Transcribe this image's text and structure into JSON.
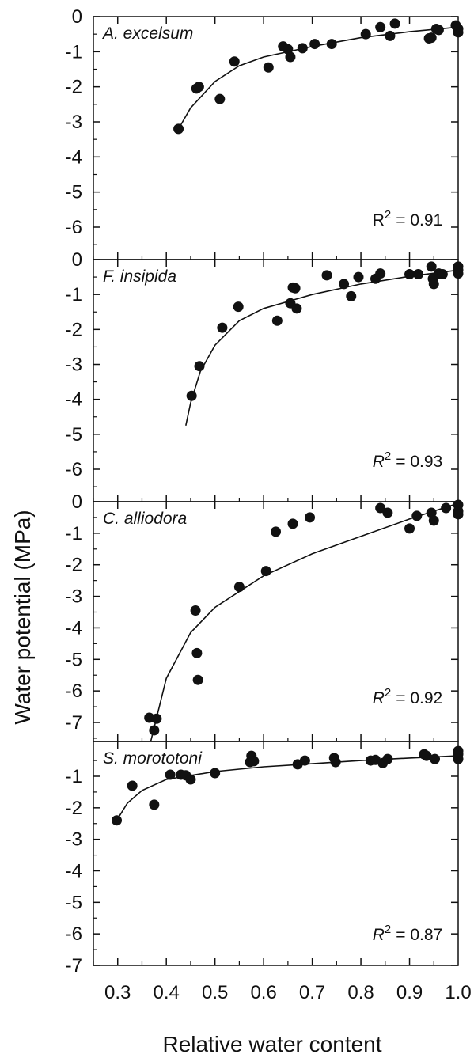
{
  "chart_data": {
    "type": "scatter",
    "xlabel": "Relative water content",
    "ylabel": "Water potential (MPa)",
    "x_ticks": [
      0.3,
      0.4,
      0.5,
      0.6,
      0.7,
      0.8,
      0.9,
      1.0
    ],
    "x_tick_labels": [
      "0.3",
      "0.4",
      "0.5",
      "0.6",
      "0.7",
      "0.8",
      "0.9",
      "1.0"
    ],
    "xlim": [
      0.25,
      1.0
    ],
    "grid": false,
    "panels": [
      {
        "species": "A. excelsum",
        "r2_label": "R",
        "r2_sup": "2",
        "r2_value": "= 0.91",
        "r2_italic": false,
        "ylim": [
          -7,
          0
        ],
        "y_ticks": [
          0,
          -1,
          -2,
          -3,
          -4,
          -5,
          -6
        ],
        "y_tick_labels": [
          "0",
          "-1",
          "-2",
          "-3",
          "-4",
          "-5",
          "-6"
        ],
        "points": [
          [
            0.425,
            -3.2
          ],
          [
            0.462,
            -2.05
          ],
          [
            0.467,
            -2.0
          ],
          [
            0.51,
            -2.35
          ],
          [
            0.54,
            -1.28
          ],
          [
            0.61,
            -1.45
          ],
          [
            0.64,
            -0.85
          ],
          [
            0.65,
            -0.93
          ],
          [
            0.655,
            -1.15
          ],
          [
            0.68,
            -0.9
          ],
          [
            0.705,
            -0.78
          ],
          [
            0.74,
            -0.78
          ],
          [
            0.81,
            -0.5
          ],
          [
            0.84,
            -0.3
          ],
          [
            0.86,
            -0.55
          ],
          [
            0.87,
            -0.2
          ],
          [
            0.94,
            -0.62
          ],
          [
            0.945,
            -0.6
          ],
          [
            0.955,
            -0.35
          ],
          [
            0.96,
            -0.38
          ],
          [
            0.995,
            -0.25
          ],
          [
            1.0,
            -0.35
          ],
          [
            1.0,
            -0.45
          ]
        ],
        "curve": [
          [
            0.425,
            -3.2
          ],
          [
            0.45,
            -2.6
          ],
          [
            0.5,
            -1.85
          ],
          [
            0.55,
            -1.4
          ],
          [
            0.6,
            -1.15
          ],
          [
            0.7,
            -0.85
          ],
          [
            0.8,
            -0.6
          ],
          [
            0.9,
            -0.43
          ],
          [
            1.0,
            -0.3
          ]
        ]
      },
      {
        "species": "F. insipida",
        "r2_label": "R",
        "r2_sup": "2",
        "r2_value": "= 0.93",
        "r2_italic": true,
        "ylim": [
          -7,
          0
        ],
        "y_ticks": [
          0,
          -1,
          -2,
          -3,
          -4,
          -5,
          -6
        ],
        "y_tick_labels": [
          "0",
          "-1",
          "-2",
          "-3",
          "-4",
          "-5",
          "-6"
        ],
        "points": [
          [
            0.452,
            -3.9
          ],
          [
            0.468,
            -3.05
          ],
          [
            0.515,
            -1.95
          ],
          [
            0.548,
            -1.35
          ],
          [
            0.628,
            -1.75
          ],
          [
            0.655,
            -1.25
          ],
          [
            0.66,
            -0.8
          ],
          [
            0.665,
            -0.82
          ],
          [
            0.668,
            -1.4
          ],
          [
            0.73,
            -0.45
          ],
          [
            0.765,
            -0.7
          ],
          [
            0.78,
            -1.05
          ],
          [
            0.795,
            -0.5
          ],
          [
            0.83,
            -0.55
          ],
          [
            0.84,
            -0.4
          ],
          [
            0.9,
            -0.42
          ],
          [
            0.918,
            -0.42
          ],
          [
            0.945,
            -0.2
          ],
          [
            0.948,
            -0.55
          ],
          [
            0.95,
            -0.7
          ],
          [
            0.96,
            -0.4
          ],
          [
            0.968,
            -0.42
          ],
          [
            1.0,
            -0.2
          ],
          [
            1.0,
            -0.3
          ],
          [
            1.0,
            -0.4
          ]
        ],
        "curve": [
          [
            0.44,
            -4.75
          ],
          [
            0.45,
            -4.1
          ],
          [
            0.47,
            -3.2
          ],
          [
            0.5,
            -2.45
          ],
          [
            0.55,
            -1.75
          ],
          [
            0.6,
            -1.4
          ],
          [
            0.7,
            -1.0
          ],
          [
            0.8,
            -0.7
          ],
          [
            0.9,
            -0.48
          ],
          [
            1.0,
            -0.3
          ]
        ]
      },
      {
        "species": "C. alliodora",
        "r2_label": "R",
        "r2_sup": "2",
        "r2_value": "= 0.92",
        "r2_italic": true,
        "ylim": [
          -7.6,
          0
        ],
        "y_ticks": [
          0,
          -1,
          -2,
          -3,
          -4,
          -5,
          -6,
          -7
        ],
        "y_tick_labels": [
          "0",
          "-1",
          "-2",
          "-3",
          "-4",
          "-5",
          "-6",
          "-7"
        ],
        "points": [
          [
            0.365,
            -6.85
          ],
          [
            0.375,
            -7.25
          ],
          [
            0.38,
            -6.88
          ],
          [
            0.46,
            -3.45
          ],
          [
            0.463,
            -4.8
          ],
          [
            0.465,
            -5.65
          ],
          [
            0.55,
            -2.7
          ],
          [
            0.605,
            -2.2
          ],
          [
            0.625,
            -0.95
          ],
          [
            0.66,
            -0.7
          ],
          [
            0.695,
            -0.5
          ],
          [
            0.84,
            -0.2
          ],
          [
            0.855,
            -0.35
          ],
          [
            0.9,
            -0.85
          ],
          [
            0.915,
            -0.45
          ],
          [
            0.945,
            -0.35
          ],
          [
            0.95,
            -0.6
          ],
          [
            0.975,
            -0.2
          ],
          [
            1.0,
            -0.1
          ],
          [
            1.0,
            -0.3
          ],
          [
            1.0,
            -0.4
          ]
        ],
        "curve": [
          [
            0.368,
            -7.6
          ],
          [
            0.4,
            -5.6
          ],
          [
            0.45,
            -4.15
          ],
          [
            0.5,
            -3.35
          ],
          [
            0.6,
            -2.35
          ],
          [
            0.7,
            -1.65
          ],
          [
            0.8,
            -1.1
          ],
          [
            0.9,
            -0.55
          ],
          [
            1.0,
            -0.05
          ]
        ]
      },
      {
        "species": "S. morototoni",
        "r2_label": "R",
        "r2_sup": "2",
        "r2_value": "= 0.87",
        "r2_italic": true,
        "ylim": [
          -7,
          -0.2
        ],
        "y_ticks": [
          -1,
          -2,
          -3,
          -4,
          -5,
          -6,
          -7
        ],
        "y_tick_labels": [
          "-1",
          "-2",
          "-3",
          "-4",
          "-5",
          "-6",
          "-7"
        ],
        "points": [
          [
            0.298,
            -2.4
          ],
          [
            0.33,
            -1.3
          ],
          [
            0.375,
            -1.9
          ],
          [
            0.408,
            -0.95
          ],
          [
            0.43,
            -0.95
          ],
          [
            0.44,
            -0.97
          ],
          [
            0.45,
            -1.1
          ],
          [
            0.5,
            -0.9
          ],
          [
            0.572,
            -0.55
          ],
          [
            0.575,
            -0.35
          ],
          [
            0.58,
            -0.52
          ],
          [
            0.67,
            -0.62
          ],
          [
            0.685,
            -0.5
          ],
          [
            0.745,
            -0.42
          ],
          [
            0.748,
            -0.55
          ],
          [
            0.82,
            -0.5
          ],
          [
            0.83,
            -0.48
          ],
          [
            0.845,
            -0.58
          ],
          [
            0.855,
            -0.45
          ],
          [
            0.93,
            -0.3
          ],
          [
            0.935,
            -0.35
          ],
          [
            0.952,
            -0.45
          ],
          [
            1.0,
            -0.2
          ],
          [
            1.0,
            -0.3
          ],
          [
            1.0,
            -0.45
          ]
        ],
        "curve": [
          [
            0.3,
            -2.35
          ],
          [
            0.32,
            -1.85
          ],
          [
            0.35,
            -1.45
          ],
          [
            0.4,
            -1.1
          ],
          [
            0.5,
            -0.85
          ],
          [
            0.6,
            -0.7
          ],
          [
            0.7,
            -0.6
          ],
          [
            0.8,
            -0.5
          ],
          [
            0.9,
            -0.42
          ],
          [
            1.0,
            -0.35
          ]
        ]
      }
    ]
  }
}
